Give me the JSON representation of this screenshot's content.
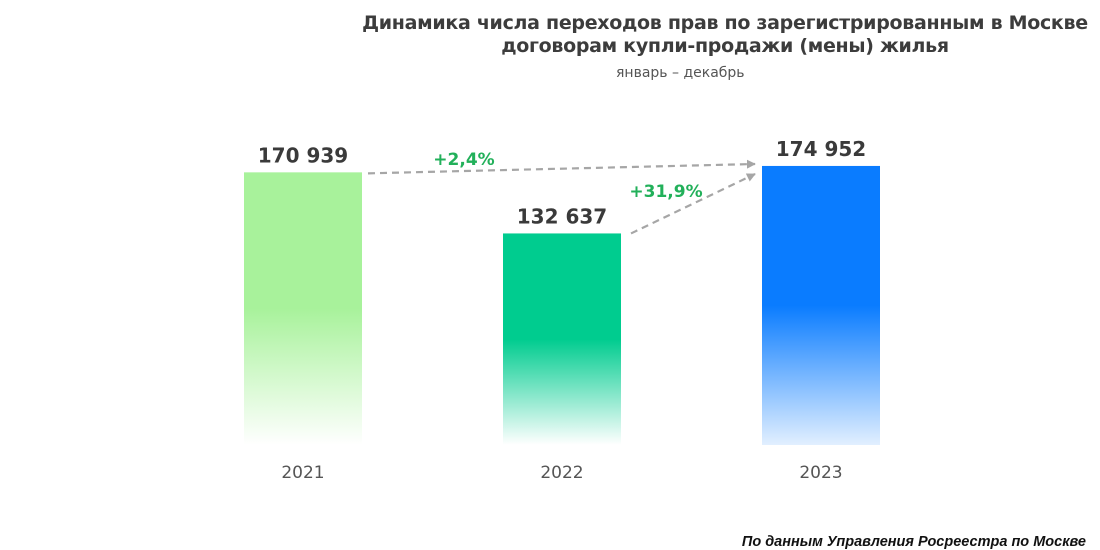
{
  "chart_data": {
    "type": "bar",
    "title": "Динамика числа переходов прав по зарегистрированным в Москве договорам купли-продажи (мены) жилья",
    "title_lines": [
      "Динамика числа переходов прав по зарегистрированным в Москве",
      "договорам купли-продажи (мены) жилья"
    ],
    "subtitle": "январь – декабрь",
    "categories": [
      "2021",
      "2022",
      "2023"
    ],
    "values": [
      170939,
      132637,
      174952
    ],
    "value_labels": [
      "170 939",
      "132 637",
      "174 952"
    ],
    "ylim": [
      0,
      200000
    ],
    "xlabel": "",
    "ylabel": "",
    "grid": false,
    "bar_colors": [
      "#a8f29b",
      "#00cc8f",
      "#0a7cff"
    ],
    "annotations": [
      {
        "label": "+2,4%",
        "from": "2021",
        "to": "2023"
      },
      {
        "label": "+31,9%",
        "from": "2022",
        "to": "2023"
      }
    ],
    "annotation_color": "#22b05a",
    "arrow_color": "#a6a6a6"
  },
  "source": "По данным Управления Росреестра по Москве"
}
